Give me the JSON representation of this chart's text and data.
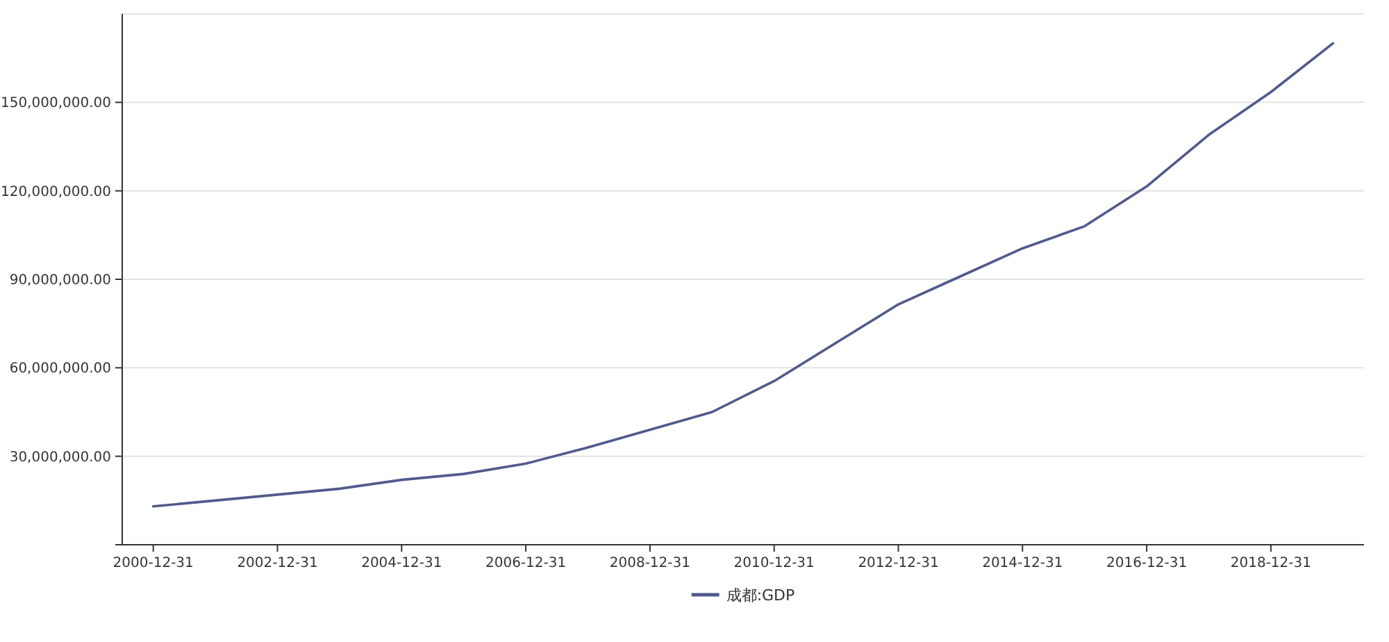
{
  "chart_data": {
    "type": "line",
    "categories": [
      "2000-12-31",
      null,
      "2002-12-31",
      null,
      "2004-12-31",
      null,
      "2006-12-31",
      null,
      "2008-12-31",
      null,
      "2010-12-31",
      null,
      "2012-12-31",
      null,
      "2014-12-31",
      null,
      "2016-12-31",
      null,
      "2018-12-31",
      null
    ],
    "series": [
      {
        "name": "成都:GDP",
        "color": "#515a8c",
        "values": [
          13000000,
          15000000,
          17000000,
          19000000,
          22000000,
          24000000,
          27500000,
          33000000,
          39000000,
          45000000,
          55500000,
          68500000,
          81500000,
          91000000,
          100500000,
          108000000,
          121500000,
          139000000,
          153500000,
          170000000
        ]
      }
    ],
    "ylim": [
      0,
      180000000
    ],
    "yticks": [
      {
        "value": 0,
        "label": null
      },
      {
        "value": 30000000,
        "label": "30,000,000.00"
      },
      {
        "value": 60000000,
        "label": "60,000,000.00"
      },
      {
        "value": 90000000,
        "label": "90,000,000.00"
      },
      {
        "value": 120000000,
        "label": "120,000,000.00"
      },
      {
        "value": 150000000,
        "label": "150,000,000.00"
      }
    ],
    "grid": "y",
    "legend": "bottom",
    "marker": "none",
    "line_style": "solid"
  }
}
